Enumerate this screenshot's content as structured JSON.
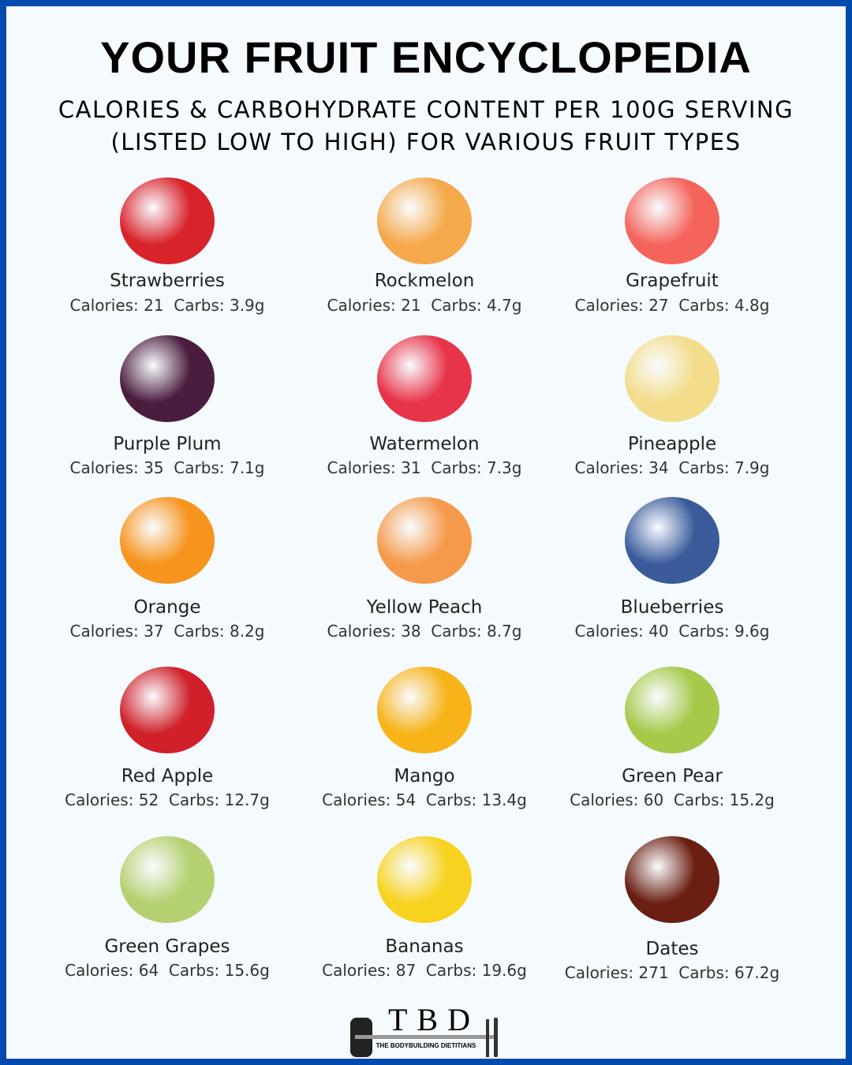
{
  "title": "YOUR FRUIT ENCYCLOPEDIA",
  "subtitle_line1": "CALORIES & CARBOHYDRATE CONTENT PER 100G SERVING",
  "subtitle_line2": "(LISTED LOW TO HIGH) FOR VARIOUS FRUIT TYPES",
  "colors": {
    "border": "#004aad",
    "background": "#f5faff"
  },
  "fruits": [
    {
      "name": "Strawberries",
      "stats": "Calories: 21  Carbs: 3.9g",
      "icon": "strawberry-icon",
      "color": "#d8232a"
    },
    {
      "name": "Rockmelon",
      "stats": "Calories: 21  Carbs: 4.7g",
      "icon": "rockmelon-icon",
      "color": "#f5a94a"
    },
    {
      "name": "Grapefruit",
      "stats": "Calories: 27  Carbs: 4.8g",
      "icon": "grapefruit-icon",
      "color": "#f4645a"
    },
    {
      "name": "Purple Plum",
      "stats": "Calories: 35  Carbs: 7.1g",
      "icon": "plum-icon",
      "color": "#4a1d3f"
    },
    {
      "name": "Watermelon",
      "stats": "Calories: 31  Carbs: 7.3g",
      "icon": "watermelon-icon",
      "color": "#e8344a"
    },
    {
      "name": "Pineapple",
      "stats": "Calories: 34  Carbs: 7.9g",
      "icon": "pineapple-icon",
      "color": "#f3dc8a"
    },
    {
      "name": "Orange",
      "stats": "Calories: 37  Carbs: 8.2g",
      "icon": "orange-icon",
      "color": "#f7941d"
    },
    {
      "name": "Yellow Peach",
      "stats": "Calories: 38  Carbs: 8.7g",
      "icon": "peach-icon",
      "color": "#f59a4a"
    },
    {
      "name": "Blueberries",
      "stats": "Calories: 40  Carbs: 9.6g",
      "icon": "blueberries-icon",
      "color": "#3a5a9a"
    },
    {
      "name": "Red Apple",
      "stats": "Calories: 52  Carbs: 12.7g",
      "icon": "apple-icon",
      "color": "#d0202a"
    },
    {
      "name": "Mango",
      "stats": "Calories: 54  Carbs: 13.4g",
      "icon": "mango-icon",
      "color": "#f7b318"
    },
    {
      "name": "Green Pear",
      "stats": "Calories: 60  Carbs: 15.2g",
      "icon": "pear-icon",
      "color": "#a6c94a"
    },
    {
      "name": "Green Grapes",
      "stats": "Calories: 64  Carbs: 15.6g",
      "icon": "grapes-icon",
      "color": "#b5d070"
    },
    {
      "name": "Bananas",
      "stats": "Calories: 87  Carbs: 19.6g",
      "icon": "banana-icon",
      "color": "#f7d320"
    },
    {
      "name": "Dates",
      "stats": "Calories: 271  Carbs: 67.2g",
      "icon": "dates-icon",
      "color": "#6a1f12"
    }
  ],
  "logo": {
    "letters": "TBD",
    "tagline": "THE BODYBUILDING DIETITIANS"
  }
}
